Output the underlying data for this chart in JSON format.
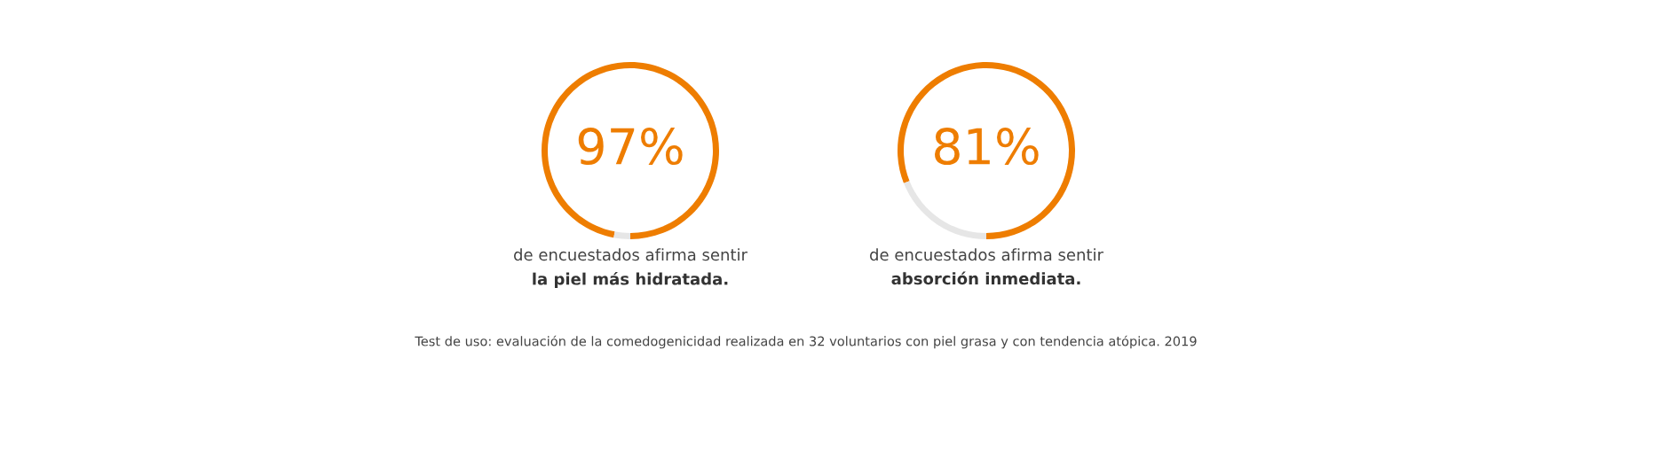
{
  "chart_data": [
    {
      "type": "donut",
      "categories": [
        null,
        null
      ],
      "values": [
        97,
        3
      ],
      "colors": [
        "#ee7d00",
        "#e6e6e6"
      ],
      "value_labels": [
        "97%",
        null
      ],
      "annotations": [
        "de encuestados afirma sentir",
        "la piel más hidratada."
      ]
    },
    {
      "type": "donut",
      "categories": [
        null,
        null
      ],
      "values": [
        81,
        19
      ],
      "colors": [
        "#ee7d00",
        "#e6e6e6"
      ],
      "value_labels": [
        "81%",
        null
      ],
      "annotations": [
        "de encuestados afirma sentir",
        "absorción inmediata."
      ]
    },
    {
      "type": "other",
      "annotations": [
        "Test de uso: evaluación de la comedogenicidad realizada en 32 voluntarios con piel grasa y con tendencia atópica. 2019"
      ]
    }
  ]
}
